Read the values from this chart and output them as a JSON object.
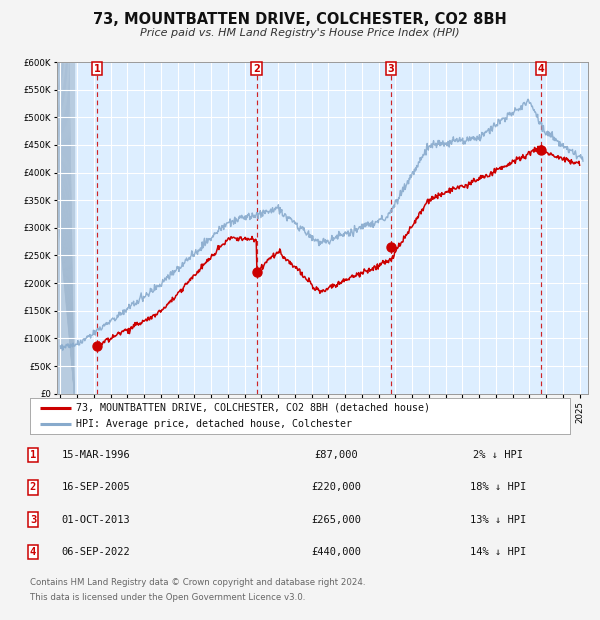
{
  "title": "73, MOUNTBATTEN DRIVE, COLCHESTER, CO2 8BH",
  "subtitle": "Price paid vs. HM Land Registry's House Price Index (HPI)",
  "fig_bg_color": "#f4f4f4",
  "plot_bg_color": "#ddeeff",
  "grid_color": "#ffffff",
  "red_line_color": "#cc0000",
  "blue_line_color": "#88aacc",
  "hatch_color": "#c8d8e8",
  "ylim": [
    0,
    600000
  ],
  "ytick_step": 50000,
  "xlim_start": 1993.8,
  "xlim_end": 2025.5,
  "transactions": [
    {
      "label": "1",
      "date": "15-MAR-1996",
      "year": 1996.21,
      "price": 87000
    },
    {
      "label": "2",
      "date": "16-SEP-2005",
      "year": 2005.71,
      "price": 220000
    },
    {
      "label": "3",
      "date": "01-OCT-2013",
      "year": 2013.75,
      "price": 265000
    },
    {
      "label": "4",
      "date": "06-SEP-2022",
      "year": 2022.68,
      "price": 440000
    }
  ],
  "legend_label_red": "73, MOUNTBATTEN DRIVE, COLCHESTER, CO2 8BH (detached house)",
  "legend_label_blue": "HPI: Average price, detached house, Colchester",
  "footer_line1": "Contains HM Land Registry data © Crown copyright and database right 2024.",
  "footer_line2": "This data is licensed under the Open Government Licence v3.0.",
  "table_rows": [
    [
      "1",
      "15-MAR-1996",
      "£87,000",
      "2% ↓ HPI"
    ],
    [
      "2",
      "16-SEP-2005",
      "£220,000",
      "18% ↓ HPI"
    ],
    [
      "3",
      "01-OCT-2013",
      "£265,000",
      "13% ↓ HPI"
    ],
    [
      "4",
      "06-SEP-2022",
      "£440,000",
      "14% ↓ HPI"
    ]
  ]
}
